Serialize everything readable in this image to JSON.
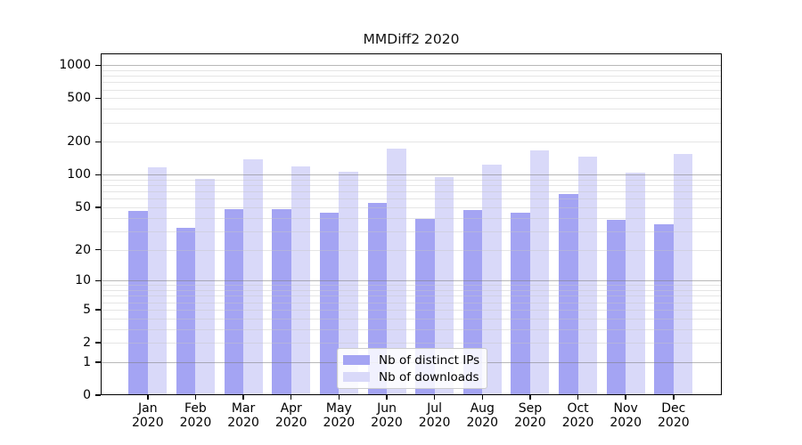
{
  "chart_data": {
    "type": "bar",
    "title": "MMDiff2 2020",
    "categories": [
      "Jan",
      "Feb",
      "Mar",
      "Apr",
      "May",
      "Jun",
      "Jul",
      "Aug",
      "Sep",
      "Oct",
      "Nov",
      "Dec"
    ],
    "x_tick_line2": "2020",
    "series": [
      {
        "name": "Nb of distinct IPs",
        "color": "#a4a4f3",
        "values": [
          46,
          32,
          48,
          48,
          45,
          55,
          39,
          47,
          45,
          67,
          38,
          35
        ]
      },
      {
        "name": "Nb of downloads",
        "color": "#d9d9f9",
        "values": [
          117,
          92,
          138,
          120,
          107,
          173,
          96,
          124,
          167,
          148,
          105,
          154
        ]
      }
    ],
    "yticks": [
      0,
      1,
      2,
      5,
      10,
      20,
      50,
      100,
      200,
      500,
      1000
    ],
    "y_scale": "log10(1+value)",
    "ylim": [
      0,
      1280
    ],
    "xlabel": "",
    "ylabel": "",
    "grid": "horizontal, minor lines at 2-9 per decade, major lines at decades",
    "grid_major_color": "#b5b5b5",
    "grid_minor_color": "#e7e7e7",
    "legend": {
      "position": "bottom-center",
      "border_color": "#cccccc",
      "background_color": "#ffffff"
    }
  }
}
